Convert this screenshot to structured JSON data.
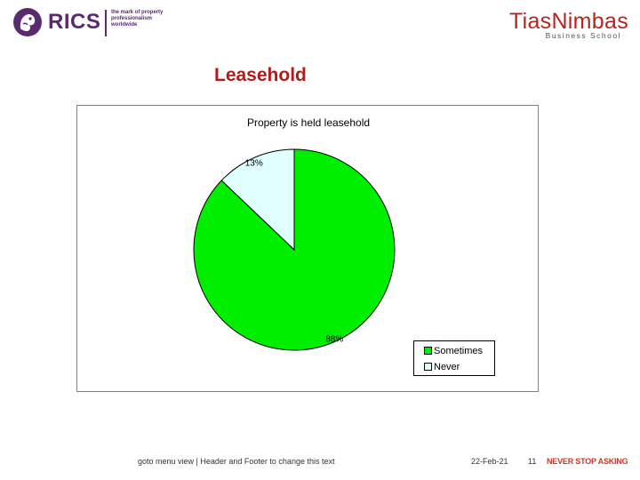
{
  "slide": {
    "title": "Leasehold",
    "logos": {
      "rics_name": "RICS",
      "rics_tagline": "the mark of property professionalism worldwide",
      "tias_name": "TiasNimbas",
      "tias_sub": "Business School"
    },
    "footer": {
      "note": "goto menu view | Header and Footer to change this text",
      "date": "22-Feb-21",
      "page": "11",
      "slogan": "NEVER STOP ASKING"
    },
    "colors": {
      "title": "#b01c1c",
      "rics_purple": "#5a2a6e",
      "tias_red": "#b3261e"
    }
  },
  "chart_data": {
    "type": "pie",
    "title": "Property is held leasehold",
    "categories": [
      "Sometimes",
      "Never"
    ],
    "values": [
      88,
      13
    ],
    "labels": [
      "88%",
      "13%"
    ],
    "colors": [
      "#00ee00",
      "#e0ffff"
    ],
    "legend": "bottom-right"
  }
}
